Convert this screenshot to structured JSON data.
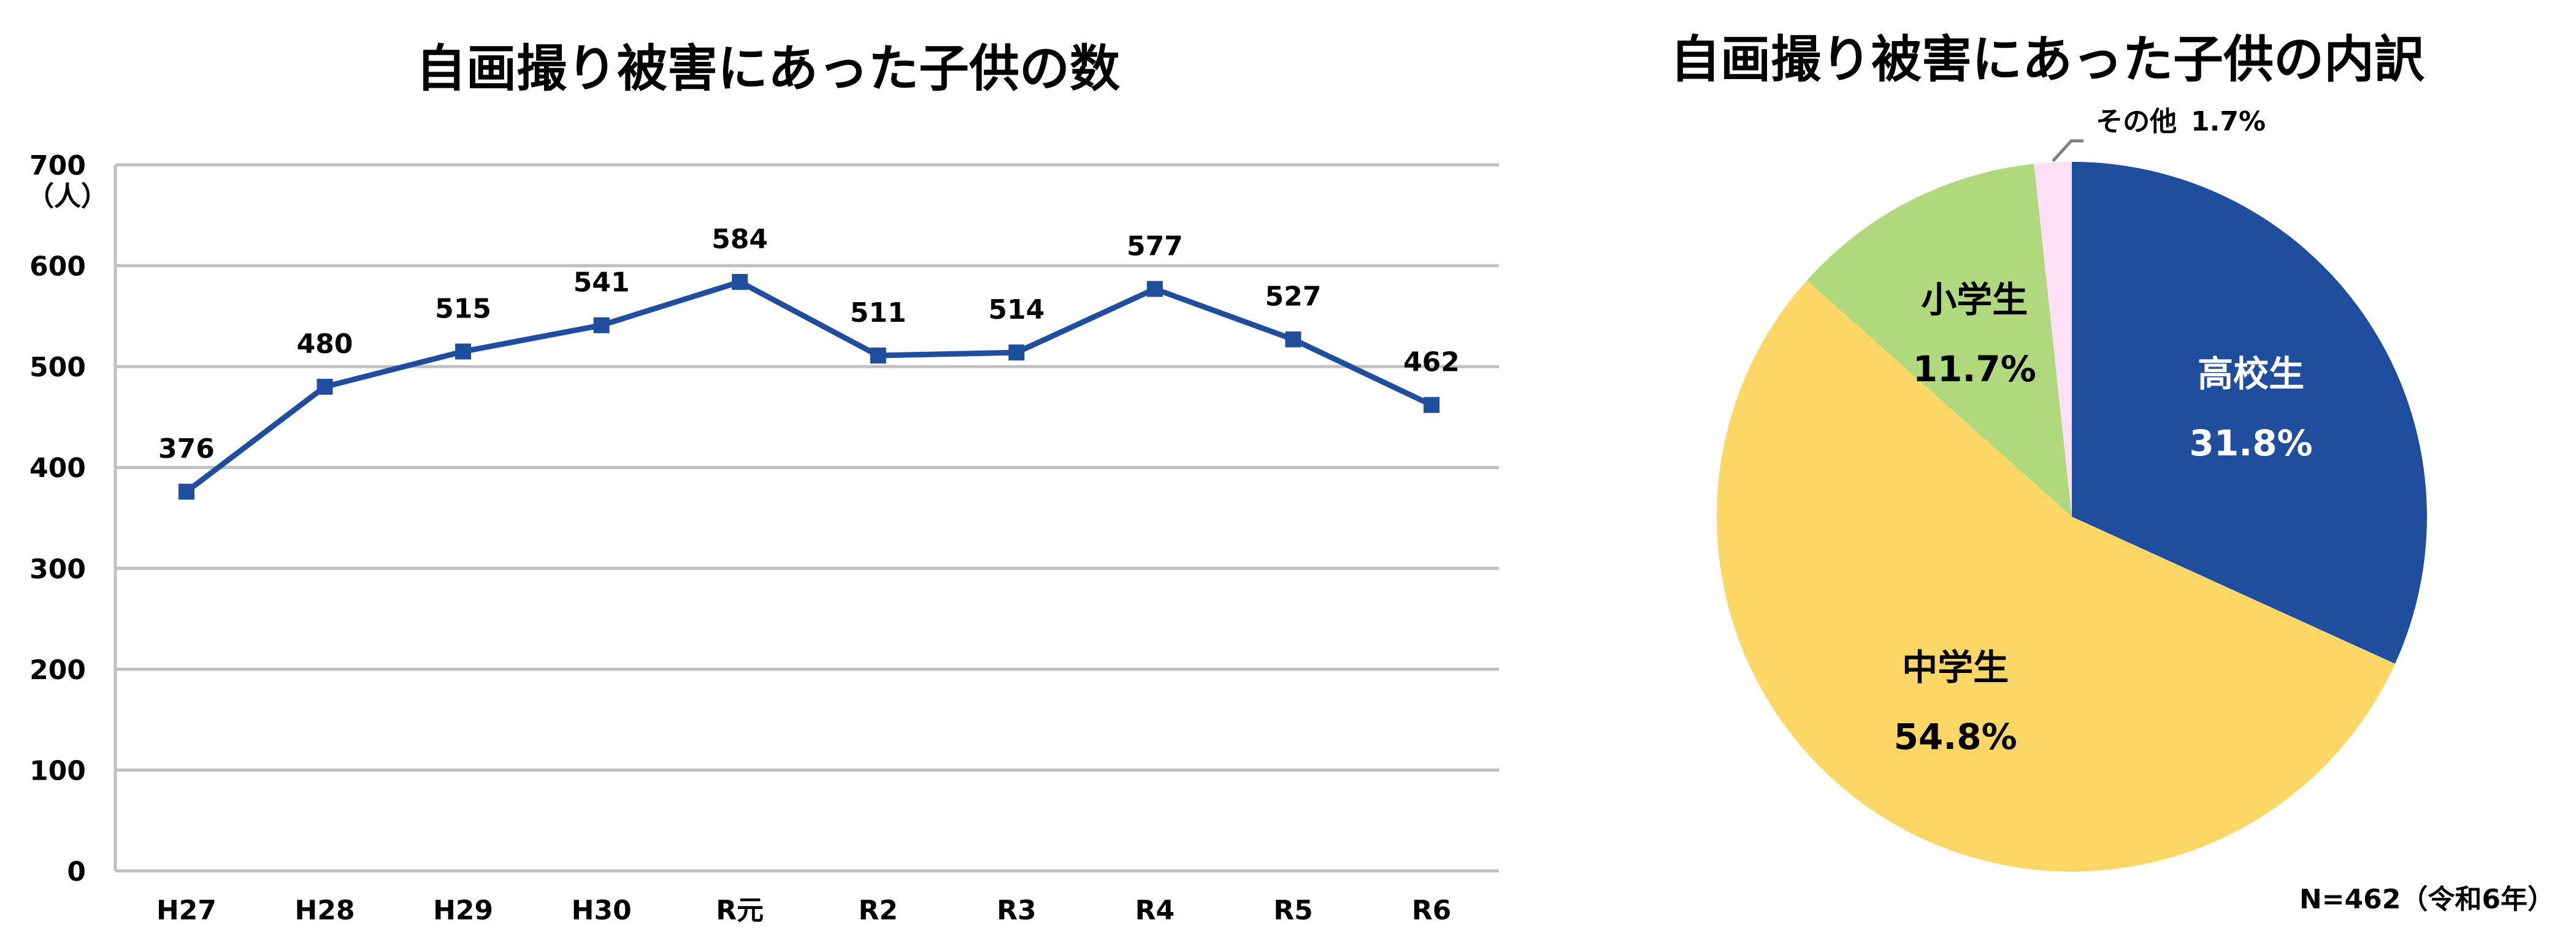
{
  "chart_data": [
    {
      "type": "line",
      "title": "自画撮り被害にあった子供の数",
      "ylabel": "（人）",
      "xlabel": "",
      "ylim": [
        0,
        700
      ],
      "yticks": [
        0,
        100,
        200,
        300,
        400,
        500,
        600,
        700
      ],
      "grid": true,
      "categories": [
        "H27",
        "H28",
        "H29",
        "H30",
        "R元",
        "R2",
        "R3",
        "R4",
        "R5",
        "R6"
      ],
      "series": [
        {
          "name": "自画撮り被害にあった子供の数",
          "values": [
            376,
            480,
            515,
            541,
            584,
            511,
            514,
            577,
            527,
            462
          ],
          "color": "#1f4e9f"
        }
      ]
    },
    {
      "type": "pie",
      "title": "自画撮り被害にあった子供の内訳",
      "slices": [
        {
          "label": "高校生",
          "value": 31.8,
          "value_label": "31.8%",
          "color": "#1f4e9f",
          "text_color": "#ffffff"
        },
        {
          "label": "中学生",
          "value": 54.8,
          "value_label": "54.8%",
          "color": "#fcd766",
          "text_color": "#000000"
        },
        {
          "label": "小学生",
          "value": 11.7,
          "value_label": "11.7%",
          "color": "#b0d97e",
          "text_color": "#000000"
        },
        {
          "label": "その他",
          "value": 1.7,
          "value_label": "1.7%",
          "color": "#fde0f5",
          "text_color": "#000000"
        }
      ],
      "note": "N=462（令和6年）"
    }
  ]
}
